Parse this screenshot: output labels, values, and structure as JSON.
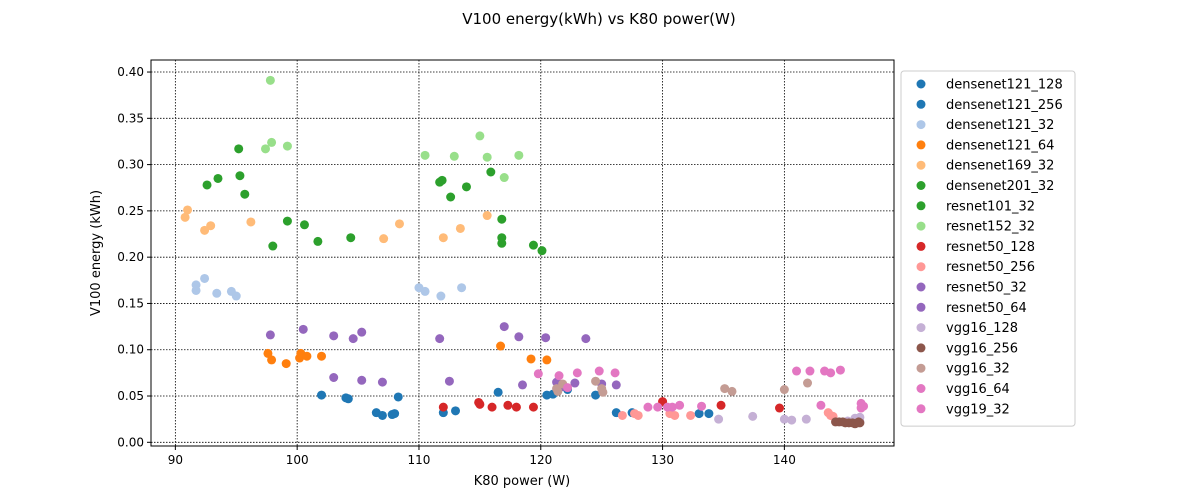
{
  "chart_data": {
    "type": "scatter",
    "title": "V100 energy(kWh) vs K80 power(W)",
    "xlabel": "K80 power (W)",
    "ylabel": "V100 energy (kWh)",
    "xlim": [
      88,
      149
    ],
    "ylim": [
      -0.004,
      0.413
    ],
    "xticks": [
      90,
      100,
      110,
      120,
      130,
      140
    ],
    "yticks": [
      0.0,
      0.05,
      0.1,
      0.15,
      0.2,
      0.25,
      0.3,
      0.35,
      0.4
    ],
    "xtick_labels": [
      "90",
      "100",
      "110",
      "120",
      "130",
      "140"
    ],
    "ytick_labels": [
      "0.00",
      "0.05",
      "0.10",
      "0.15",
      "0.20",
      "0.25",
      "0.30",
      "0.35",
      "0.40"
    ],
    "grid": true,
    "legend_position": "outside-right",
    "series": [
      {
        "name": "densenet121_128",
        "color": "#1f77b4",
        "points": [
          [
            102.0,
            0.051
          ],
          [
            104.0,
            0.048
          ],
          [
            104.2,
            0.047
          ],
          [
            106.5,
            0.032
          ],
          [
            107.0,
            0.029
          ],
          [
            107.8,
            0.03
          ],
          [
            108.0,
            0.031
          ],
          [
            108.3,
            0.049
          ],
          [
            112.0,
            0.032
          ],
          [
            113.0,
            0.034
          ],
          [
            116.5,
            0.054
          ]
        ]
      },
      {
        "name": "densenet121_256",
        "color": "#1f77b4",
        "points": [
          [
            120.5,
            0.051
          ],
          [
            121.0,
            0.052
          ],
          [
            122.2,
            0.057
          ],
          [
            124.5,
            0.051
          ],
          [
            126.2,
            0.032
          ],
          [
            127.5,
            0.032
          ],
          [
            133.0,
            0.031
          ],
          [
            133.8,
            0.031
          ]
        ]
      },
      {
        "name": "densenet121_32",
        "color": "#aec7e8",
        "points": [
          [
            91.7,
            0.17
          ],
          [
            91.7,
            0.164
          ],
          [
            92.4,
            0.177
          ],
          [
            93.4,
            0.161
          ],
          [
            94.6,
            0.163
          ],
          [
            95.0,
            0.158
          ],
          [
            110.0,
            0.167
          ],
          [
            110.5,
            0.163
          ],
          [
            111.8,
            0.158
          ],
          [
            113.5,
            0.167
          ]
        ]
      },
      {
        "name": "densenet121_64",
        "color": "#ff7f0e",
        "points": [
          [
            97.6,
            0.096
          ],
          [
            97.9,
            0.089
          ],
          [
            99.1,
            0.085
          ],
          [
            100.2,
            0.091
          ],
          [
            100.3,
            0.096
          ],
          [
            100.8,
            0.093
          ],
          [
            102.0,
            0.093
          ],
          [
            116.7,
            0.104
          ],
          [
            119.2,
            0.09
          ],
          [
            120.5,
            0.089
          ]
        ]
      },
      {
        "name": "densenet169_32",
        "color": "#ffbb78",
        "points": [
          [
            90.8,
            0.243
          ],
          [
            91.0,
            0.251
          ],
          [
            92.4,
            0.229
          ],
          [
            92.9,
            0.234
          ],
          [
            96.2,
            0.238
          ],
          [
            107.1,
            0.22
          ],
          [
            108.4,
            0.236
          ],
          [
            112.0,
            0.221
          ],
          [
            113.4,
            0.231
          ],
          [
            115.6,
            0.245
          ]
        ]
      },
      {
        "name": "densenet201_32",
        "color": "#2ca02c",
        "points": [
          [
            92.6,
            0.278
          ],
          [
            93.5,
            0.285
          ],
          [
            95.2,
            0.317
          ],
          [
            95.3,
            0.288
          ],
          [
            95.7,
            0.268
          ],
          [
            98.0,
            0.212
          ],
          [
            99.2,
            0.239
          ],
          [
            100.6,
            0.235
          ],
          [
            101.7,
            0.217
          ],
          [
            104.4,
            0.221
          ]
        ]
      },
      {
        "name": "resnet101_32",
        "color": "#2ca02c",
        "points": [
          [
            111.7,
            0.281
          ],
          [
            111.9,
            0.283
          ],
          [
            112.6,
            0.265
          ],
          [
            113.9,
            0.276
          ],
          [
            115.9,
            0.292
          ],
          [
            116.8,
            0.241
          ],
          [
            116.8,
            0.221
          ],
          [
            116.8,
            0.215
          ],
          [
            119.4,
            0.213
          ],
          [
            120.1,
            0.207
          ]
        ]
      },
      {
        "name": "resnet152_32",
        "color": "#98df8a",
        "points": [
          [
            97.8,
            0.391
          ],
          [
            97.9,
            0.324
          ],
          [
            97.4,
            0.317
          ],
          [
            99.2,
            0.32
          ],
          [
            110.5,
            0.31
          ],
          [
            112.9,
            0.309
          ],
          [
            115.0,
            0.331
          ],
          [
            115.6,
            0.308
          ],
          [
            117.0,
            0.286
          ],
          [
            118.2,
            0.31
          ]
        ]
      },
      {
        "name": "resnet50_128",
        "color": "#d62728",
        "points": [
          [
            112.0,
            0.038
          ],
          [
            114.9,
            0.043
          ],
          [
            115.0,
            0.041
          ],
          [
            116.0,
            0.038
          ],
          [
            117.3,
            0.04
          ],
          [
            118.0,
            0.038
          ],
          [
            119.4,
            0.038
          ],
          [
            130.0,
            0.044
          ],
          [
            134.8,
            0.04
          ],
          [
            139.6,
            0.037
          ]
        ]
      },
      {
        "name": "resnet50_256",
        "color": "#ff9896",
        "points": [
          [
            126.7,
            0.029
          ],
          [
            127.7,
            0.031
          ],
          [
            128.0,
            0.029
          ],
          [
            130.6,
            0.031
          ],
          [
            131.0,
            0.029
          ],
          [
            132.3,
            0.029
          ],
          [
            143.6,
            0.032
          ],
          [
            143.8,
            0.029
          ],
          [
            144.0,
            0.028
          ],
          [
            145.8,
            0.025
          ]
        ]
      },
      {
        "name": "resnet50_32",
        "color": "#9467bd",
        "points": [
          [
            97.8,
            0.116
          ],
          [
            100.5,
            0.122
          ],
          [
            103.0,
            0.115
          ],
          [
            104.6,
            0.112
          ],
          [
            105.3,
            0.119
          ],
          [
            111.7,
            0.112
          ],
          [
            117.0,
            0.125
          ],
          [
            118.2,
            0.114
          ],
          [
            120.4,
            0.113
          ],
          [
            123.7,
            0.112
          ]
        ]
      },
      {
        "name": "resnet50_64",
        "color": "#9467bd",
        "points": [
          [
            103.0,
            0.07
          ],
          [
            105.3,
            0.067
          ],
          [
            107.0,
            0.065
          ],
          [
            112.5,
            0.066
          ],
          [
            118.5,
            0.062
          ],
          [
            121.3,
            0.065
          ],
          [
            121.7,
            0.06
          ],
          [
            122.8,
            0.064
          ],
          [
            125.0,
            0.063
          ],
          [
            126.2,
            0.062
          ]
        ]
      },
      {
        "name": "vgg16_128",
        "color": "#c5b0d5",
        "points": [
          [
            134.6,
            0.025
          ],
          [
            137.4,
            0.028
          ],
          [
            140.0,
            0.025
          ],
          [
            140.6,
            0.024
          ],
          [
            141.8,
            0.025
          ],
          [
            145.8,
            0.026
          ],
          [
            146.2,
            0.027
          ],
          [
            146.2,
            0.022
          ],
          [
            145.2,
            0.023
          ],
          [
            146.0,
            0.025
          ]
        ]
      },
      {
        "name": "vgg16_256",
        "color": "#8c564b",
        "points": [
          [
            144.2,
            0.022
          ],
          [
            144.5,
            0.022
          ],
          [
            144.8,
            0.022
          ],
          [
            145.0,
            0.021
          ],
          [
            145.3,
            0.021
          ],
          [
            145.6,
            0.021
          ],
          [
            145.8,
            0.02
          ],
          [
            146.0,
            0.021
          ],
          [
            146.1,
            0.022
          ],
          [
            146.2,
            0.021
          ]
        ]
      },
      {
        "name": "vgg16_32",
        "color": "#c49c94",
        "points": [
          [
            121.3,
            0.058
          ],
          [
            121.4,
            0.055
          ],
          [
            121.8,
            0.063
          ],
          [
            124.5,
            0.066
          ],
          [
            125.0,
            0.058
          ],
          [
            125.1,
            0.054
          ],
          [
            135.1,
            0.058
          ],
          [
            135.7,
            0.055
          ],
          [
            140.0,
            0.057
          ],
          [
            141.9,
            0.064
          ]
        ]
      },
      {
        "name": "vgg16_64",
        "color": "#e377c2",
        "points": [
          [
            121.5,
            0.072
          ],
          [
            122.2,
            0.059
          ],
          [
            123.0,
            0.075
          ],
          [
            124.8,
            0.077
          ],
          [
            126.1,
            0.075
          ],
          [
            128.8,
            0.038
          ],
          [
            129.6,
            0.038
          ],
          [
            130.4,
            0.038
          ],
          [
            130.8,
            0.038
          ],
          [
            131.4,
            0.04
          ],
          [
            133.2,
            0.039
          ],
          [
            143.0,
            0.04
          ],
          [
            146.3,
            0.042
          ],
          [
            146.3,
            0.037
          ]
        ]
      },
      {
        "name": "vgg19_32",
        "color": "#e377c2",
        "points": [
          [
            119.8,
            0.074
          ],
          [
            141.0,
            0.077
          ],
          [
            142.1,
            0.077
          ],
          [
            143.3,
            0.077
          ],
          [
            143.8,
            0.075
          ],
          [
            144.6,
            0.078
          ],
          [
            146.5,
            0.039
          ]
        ]
      }
    ]
  }
}
